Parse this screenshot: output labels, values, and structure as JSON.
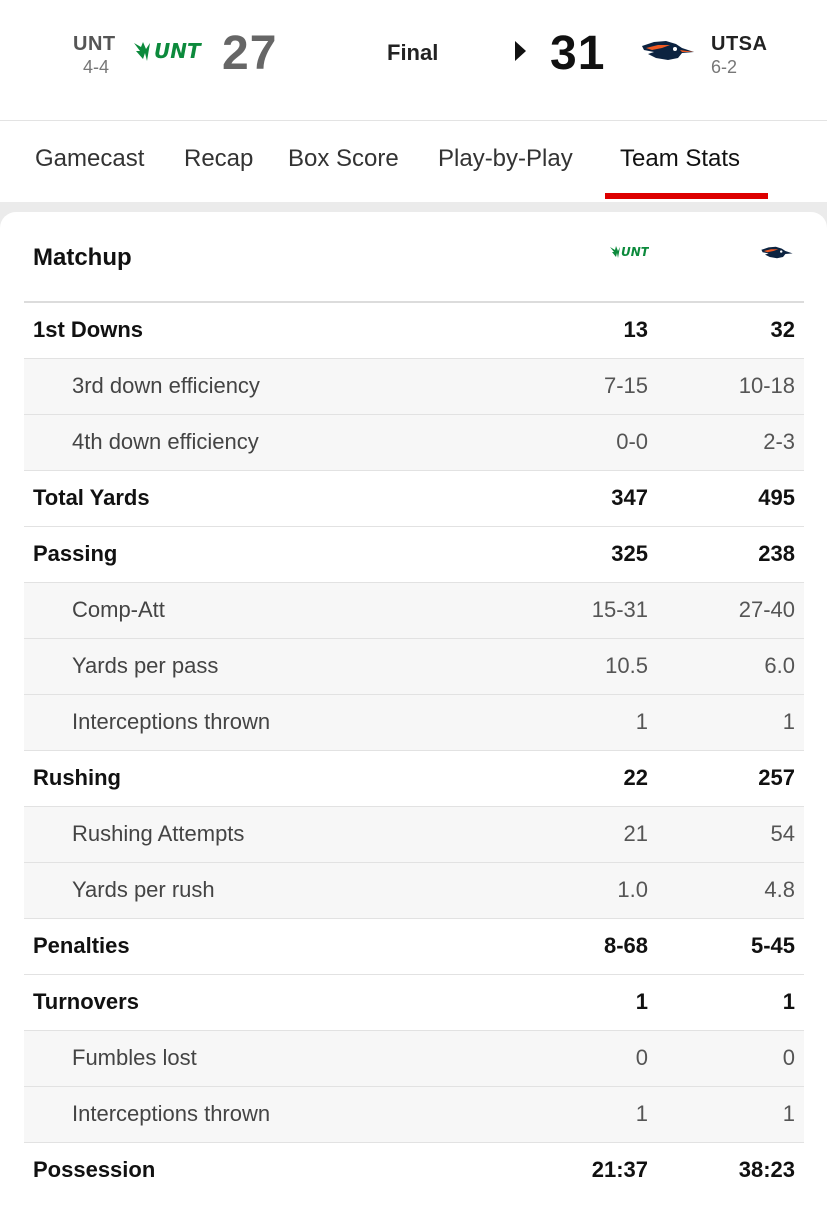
{
  "scoreboard": {
    "away": {
      "abbr": "UNT",
      "record": "4-4",
      "score": "27",
      "logo_text": "UNT",
      "logo_icon": "mean-green-eagle-logo"
    },
    "home": {
      "abbr": "UTSA",
      "record": "6-2",
      "score": "31",
      "logo_icon": "roadrunner-logo"
    },
    "status": "Final",
    "winner": "home"
  },
  "tabs": [
    {
      "label": "Gamecast",
      "active": false
    },
    {
      "label": "Recap",
      "active": false
    },
    {
      "label": "Box Score",
      "active": false
    },
    {
      "label": "Play-by-Play",
      "active": false
    },
    {
      "label": "Team Stats",
      "active": true
    }
  ],
  "matchup": {
    "title": "Matchup",
    "rows": [
      {
        "label": "1st Downs",
        "unt": "13",
        "utsa": "32",
        "sub": false
      },
      {
        "label": "3rd down efficiency",
        "unt": "7-15",
        "utsa": "10-18",
        "sub": true
      },
      {
        "label": "4th down efficiency",
        "unt": "0-0",
        "utsa": "2-3",
        "sub": true
      },
      {
        "label": "Total Yards",
        "unt": "347",
        "utsa": "495",
        "sub": false
      },
      {
        "label": "Passing",
        "unt": "325",
        "utsa": "238",
        "sub": false
      },
      {
        "label": "Comp-Att",
        "unt": "15-31",
        "utsa": "27-40",
        "sub": true
      },
      {
        "label": "Yards per pass",
        "unt": "10.5",
        "utsa": "6.0",
        "sub": true
      },
      {
        "label": "Interceptions thrown",
        "unt": "1",
        "utsa": "1",
        "sub": true
      },
      {
        "label": "Rushing",
        "unt": "22",
        "utsa": "257",
        "sub": false
      },
      {
        "label": "Rushing Attempts",
        "unt": "21",
        "utsa": "54",
        "sub": true
      },
      {
        "label": "Yards per rush",
        "unt": "1.0",
        "utsa": "4.8",
        "sub": true
      },
      {
        "label": "Penalties",
        "unt": "8-68",
        "utsa": "5-45",
        "sub": false
      },
      {
        "label": "Turnovers",
        "unt": "1",
        "utsa": "1",
        "sub": false
      },
      {
        "label": "Fumbles lost",
        "unt": "0",
        "utsa": "0",
        "sub": true
      },
      {
        "label": "Interceptions thrown",
        "unt": "1",
        "utsa": "1",
        "sub": true
      },
      {
        "label": "Possession",
        "unt": "21:37",
        "utsa": "38:23",
        "sub": false
      }
    ]
  },
  "colors": {
    "unt_green": "#0c8a3c",
    "utsa_navy": "#0c2340",
    "utsa_orange": "#f15a22",
    "accent_red": "#dd0000"
  }
}
